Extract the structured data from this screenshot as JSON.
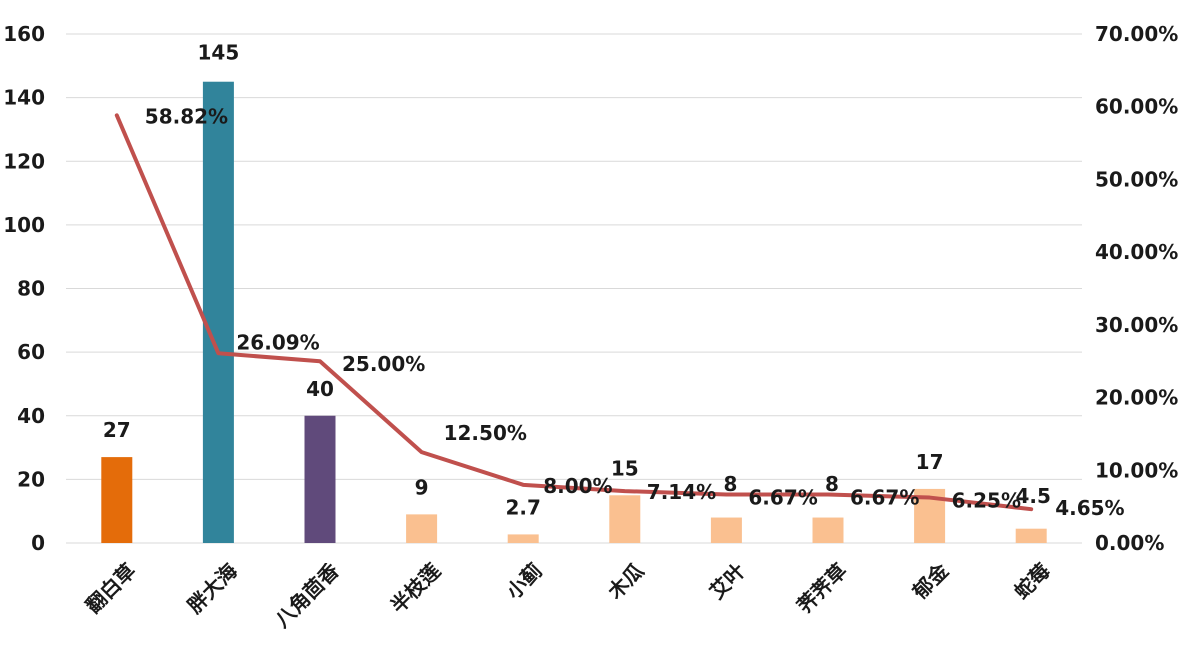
{
  "chart_data": {
    "type": "bar",
    "categories": [
      "翻白草",
      "胖大海",
      "八角茴香",
      "半枝莲",
      "小蓟",
      "木瓜",
      "艾叶",
      "荠荠草",
      "郁金",
      "蛇莓"
    ],
    "series": [
      {
        "type": "bar",
        "axis": "left",
        "values": [
          27,
          145,
          40,
          9,
          2.7,
          15,
          8,
          8,
          17,
          4.5
        ],
        "labels": [
          "27",
          "145",
          "40",
          "9",
          "2.7",
          "15",
          "8",
          "8",
          "17",
          "4.5"
        ],
        "colors": [
          "#e46c0a",
          "#31849b",
          "#604a7b",
          "#fac090",
          "#fac090",
          "#fac090",
          "#fac090",
          "#fac090",
          "#fac090",
          "#fac090"
        ]
      },
      {
        "type": "line",
        "axis": "right",
        "values": [
          58.82,
          26.09,
          25.0,
          12.5,
          8.0,
          7.14,
          6.67,
          6.67,
          6.25,
          4.65
        ],
        "labels": [
          "58.82%",
          "26.09%",
          "25.00%",
          "12.50%",
          "8.00%",
          "7.14%",
          "6.67%",
          "6.67%",
          "6.25%",
          "4.65%"
        ],
        "color": "#c0504d"
      }
    ],
    "y_left": {
      "min": 0,
      "max": 160,
      "ticks": [
        "0",
        "20",
        "40",
        "60",
        "80",
        "100",
        "120",
        "140",
        "160"
      ]
    },
    "y_right": {
      "min": 0,
      "max": 70,
      "ticks": [
        "0.00%",
        "10.00%",
        "20.00%",
        "30.00%",
        "40.00%",
        "50.00%",
        "60.00%",
        "70.00%"
      ]
    },
    "grid": true,
    "legend": "none"
  }
}
